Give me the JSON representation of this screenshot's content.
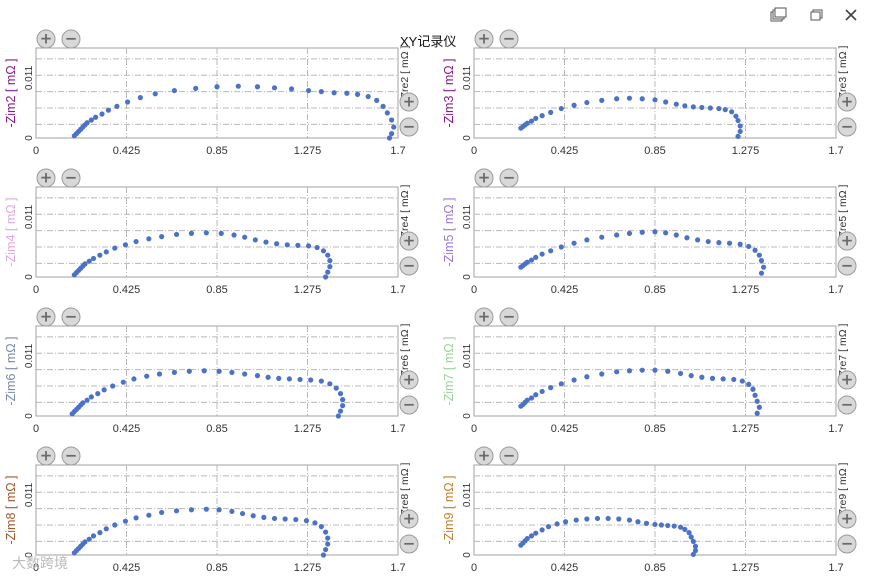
{
  "window": {
    "title": "XY记录仪",
    "buttons": [
      "restore-windows",
      "maximize",
      "close"
    ]
  },
  "axis": {
    "x_ticks": [
      "0",
      "0.425",
      "0.85",
      "1.275",
      "1.7"
    ],
    "y_ticks": [
      "0",
      "0.011"
    ],
    "plus_glyph": "+",
    "minus_glyph": "−"
  },
  "watermark": "大数跨境",
  "point_color": "#4c72c8",
  "chart_data": [
    {
      "type": "scatter",
      "ylabel": "-Zim2 [ mΩ ]",
      "xlabel": "Zre2 [ mΩ ]",
      "ylabel_color": "#8b1a8b",
      "xlim": [
        0,
        1.7
      ],
      "ylim": [
        0,
        0.0165
      ],
      "x": [
        0.18,
        0.19,
        0.2,
        0.21,
        0.22,
        0.23,
        0.24,
        0.26,
        0.28,
        0.31,
        0.34,
        0.38,
        0.43,
        0.49,
        0.56,
        0.65,
        0.75,
        0.85,
        0.95,
        1.04,
        1.12,
        1.2,
        1.28,
        1.34,
        1.4,
        1.46,
        1.51,
        1.56,
        1.6,
        1.63,
        1.65,
        1.67,
        1.68,
        1.67,
        1.66
      ],
      "y": [
        0.0004,
        0.0008,
        0.0012,
        0.0016,
        0.002,
        0.0024,
        0.0028,
        0.0033,
        0.0038,
        0.0044,
        0.0051,
        0.0058,
        0.0066,
        0.0074,
        0.0081,
        0.0087,
        0.0091,
        0.0094,
        0.0095,
        0.0094,
        0.0092,
        0.009,
        0.0087,
        0.0085,
        0.0083,
        0.0082,
        0.008,
        0.0076,
        0.0069,
        0.0058,
        0.0046,
        0.0033,
        0.002,
        0.0008,
        0.0
      ]
    },
    {
      "type": "scatter",
      "ylabel": "-Zim3 [ mΩ ]",
      "xlabel": "Zre3 [ mΩ ]",
      "ylabel_color": "#8b1a8b",
      "xlim": [
        0,
        1.7
      ],
      "ylim": [
        0,
        0.0165
      ],
      "x": [
        0.22,
        0.23,
        0.24,
        0.25,
        0.27,
        0.29,
        0.32,
        0.36,
        0.41,
        0.47,
        0.53,
        0.6,
        0.67,
        0.73,
        0.79,
        0.85,
        0.9,
        0.95,
        0.99,
        1.03,
        1.07,
        1.11,
        1.15,
        1.18,
        1.21,
        1.23,
        1.24,
        1.25,
        1.25,
        1.24
      ],
      "y": [
        0.0018,
        0.0021,
        0.0024,
        0.0027,
        0.0031,
        0.0036,
        0.0041,
        0.0047,
        0.0054,
        0.006,
        0.0065,
        0.0069,
        0.0072,
        0.0073,
        0.0072,
        0.007,
        0.0066,
        0.0062,
        0.0059,
        0.0057,
        0.0056,
        0.0055,
        0.0054,
        0.0052,
        0.0048,
        0.004,
        0.0032,
        0.0022,
        0.0012,
        0.0003
      ]
    },
    {
      "type": "scatter",
      "ylabel": "-Zim4 [ mΩ ]",
      "xlabel": "Zre4 [ mΩ ]",
      "ylabel_color": "#e0a8e0",
      "xlim": [
        0,
        1.7
      ],
      "ylim": [
        0,
        0.0165
      ],
      "x": [
        0.18,
        0.19,
        0.2,
        0.21,
        0.22,
        0.23,
        0.25,
        0.27,
        0.3,
        0.33,
        0.37,
        0.42,
        0.47,
        0.53,
        0.59,
        0.66,
        0.73,
        0.8,
        0.87,
        0.93,
        0.98,
        1.03,
        1.08,
        1.13,
        1.18,
        1.23,
        1.28,
        1.32,
        1.35,
        1.37,
        1.38,
        1.38,
        1.37,
        1.36
      ],
      "y": [
        0.0004,
        0.0008,
        0.0012,
        0.0016,
        0.002,
        0.0024,
        0.0029,
        0.0034,
        0.004,
        0.0046,
        0.0053,
        0.0059,
        0.0065,
        0.007,
        0.0074,
        0.0078,
        0.008,
        0.0081,
        0.008,
        0.0077,
        0.0073,
        0.0068,
        0.0064,
        0.0061,
        0.0059,
        0.0058,
        0.0057,
        0.0054,
        0.0048,
        0.004,
        0.003,
        0.0019,
        0.0009,
        0.0
      ]
    },
    {
      "type": "scatter",
      "ylabel": "-Zim5 [ mΩ ]",
      "xlabel": "Zre5 [ mΩ ]",
      "ylabel_color": "#9a7ad4",
      "xlim": [
        0,
        1.7
      ],
      "ylim": [
        0,
        0.0165
      ],
      "x": [
        0.22,
        0.23,
        0.24,
        0.25,
        0.27,
        0.29,
        0.32,
        0.36,
        0.41,
        0.47,
        0.53,
        0.6,
        0.67,
        0.73,
        0.79,
        0.85,
        0.9,
        0.95,
        1.0,
        1.05,
        1.1,
        1.15,
        1.2,
        1.25,
        1.29,
        1.32,
        1.34,
        1.35,
        1.36,
        1.35
      ],
      "y": [
        0.0018,
        0.0021,
        0.0024,
        0.0027,
        0.0031,
        0.0036,
        0.0042,
        0.0048,
        0.0055,
        0.0062,
        0.0068,
        0.0073,
        0.0077,
        0.008,
        0.0082,
        0.0083,
        0.0081,
        0.0077,
        0.0072,
        0.0068,
        0.0065,
        0.0063,
        0.0062,
        0.006,
        0.0056,
        0.0049,
        0.004,
        0.003,
        0.0018,
        0.0007
      ]
    },
    {
      "type": "scatter",
      "ylabel": "-Zim6 [ mΩ ]",
      "xlabel": "Zre6 [ mΩ ]",
      "ylabel_color": "#7a8aa8",
      "xlim": [
        0,
        1.7
      ],
      "ylim": [
        0,
        0.0165
      ],
      "x": [
        0.17,
        0.18,
        0.19,
        0.2,
        0.21,
        0.22,
        0.24,
        0.26,
        0.29,
        0.32,
        0.36,
        0.41,
        0.46,
        0.52,
        0.58,
        0.65,
        0.72,
        0.79,
        0.86,
        0.92,
        0.98,
        1.04,
        1.09,
        1.14,
        1.19,
        1.24,
        1.29,
        1.34,
        1.38,
        1.41,
        1.43,
        1.44,
        1.44,
        1.43,
        1.42
      ],
      "y": [
        0.0004,
        0.0008,
        0.0012,
        0.0016,
        0.002,
        0.0024,
        0.0029,
        0.0035,
        0.0041,
        0.0048,
        0.0055,
        0.0062,
        0.0068,
        0.0073,
        0.0077,
        0.008,
        0.0082,
        0.0083,
        0.0082,
        0.008,
        0.0077,
        0.0074,
        0.0071,
        0.0069,
        0.0068,
        0.0067,
        0.0066,
        0.0064,
        0.0059,
        0.0051,
        0.0041,
        0.003,
        0.0019,
        0.0009,
        0.0
      ]
    },
    {
      "type": "scatter",
      "ylabel": "-Zim7 [ mΩ ]",
      "xlabel": "Zre7 [ mΩ ]",
      "ylabel_color": "#9ad49a",
      "xlim": [
        0,
        1.7
      ],
      "ylim": [
        0,
        0.0165
      ],
      "x": [
        0.22,
        0.23,
        0.24,
        0.25,
        0.27,
        0.29,
        0.32,
        0.36,
        0.41,
        0.47,
        0.53,
        0.6,
        0.67,
        0.73,
        0.79,
        0.85,
        0.91,
        0.97,
        1.02,
        1.07,
        1.12,
        1.17,
        1.22,
        1.26,
        1.29,
        1.31,
        1.32,
        1.33,
        1.34,
        1.33
      ],
      "y": [
        0.0018,
        0.0021,
        0.0025,
        0.0029,
        0.0033,
        0.0039,
        0.0045,
        0.0052,
        0.0059,
        0.0066,
        0.0072,
        0.0077,
        0.0081,
        0.0083,
        0.0084,
        0.0084,
        0.0082,
        0.0078,
        0.0074,
        0.0071,
        0.0069,
        0.0068,
        0.0067,
        0.0064,
        0.0058,
        0.0049,
        0.0038,
        0.0027,
        0.0016,
        0.0005
      ]
    },
    {
      "type": "scatter",
      "ylabel": "-Zim8 [ mΩ ]",
      "xlabel": "Zre8 [ mΩ ]",
      "ylabel_color": "#a05a30",
      "xlim": [
        0,
        1.7
      ],
      "ylim": [
        0,
        0.0165
      ],
      "x": [
        0.18,
        0.19,
        0.2,
        0.21,
        0.22,
        0.23,
        0.25,
        0.27,
        0.3,
        0.33,
        0.37,
        0.42,
        0.47,
        0.53,
        0.59,
        0.66,
        0.73,
        0.8,
        0.86,
        0.92,
        0.97,
        1.02,
        1.07,
        1.12,
        1.17,
        1.22,
        1.27,
        1.31,
        1.34,
        1.36,
        1.37,
        1.37,
        1.36,
        1.35
      ],
      "y": [
        0.0004,
        0.0008,
        0.0012,
        0.0016,
        0.002,
        0.0024,
        0.0029,
        0.0035,
        0.0041,
        0.0048,
        0.0055,
        0.0062,
        0.0068,
        0.0073,
        0.0078,
        0.0081,
        0.0083,
        0.0084,
        0.0083,
        0.008,
        0.0076,
        0.0072,
        0.0069,
        0.0067,
        0.0066,
        0.0065,
        0.0063,
        0.0059,
        0.0052,
        0.0042,
        0.0031,
        0.002,
        0.001,
        0.0
      ]
    },
    {
      "type": "scatter",
      "ylabel": "-Zim9 [ mΩ ]",
      "xlabel": "Zre9 [ mΩ ]",
      "ylabel_color": "#c08030",
      "xlim": [
        0,
        1.7
      ],
      "ylim": [
        0,
        0.0165
      ],
      "x": [
        0.22,
        0.23,
        0.24,
        0.25,
        0.27,
        0.29,
        0.32,
        0.35,
        0.39,
        0.43,
        0.48,
        0.53,
        0.58,
        0.63,
        0.68,
        0.73,
        0.77,
        0.81,
        0.85,
        0.88,
        0.91,
        0.94,
        0.97,
        0.99,
        1.01,
        1.02,
        1.03,
        1.04,
        1.04,
        1.03
      ],
      "y": [
        0.0018,
        0.0022,
        0.0026,
        0.003,
        0.0035,
        0.004,
        0.0046,
        0.0052,
        0.0057,
        0.0061,
        0.0064,
        0.0066,
        0.0067,
        0.0067,
        0.0066,
        0.0064,
        0.0061,
        0.0058,
        0.0056,
        0.0055,
        0.0054,
        0.0053,
        0.0051,
        0.0047,
        0.0041,
        0.0033,
        0.0025,
        0.0016,
        0.0008,
        0.0001
      ]
    }
  ]
}
